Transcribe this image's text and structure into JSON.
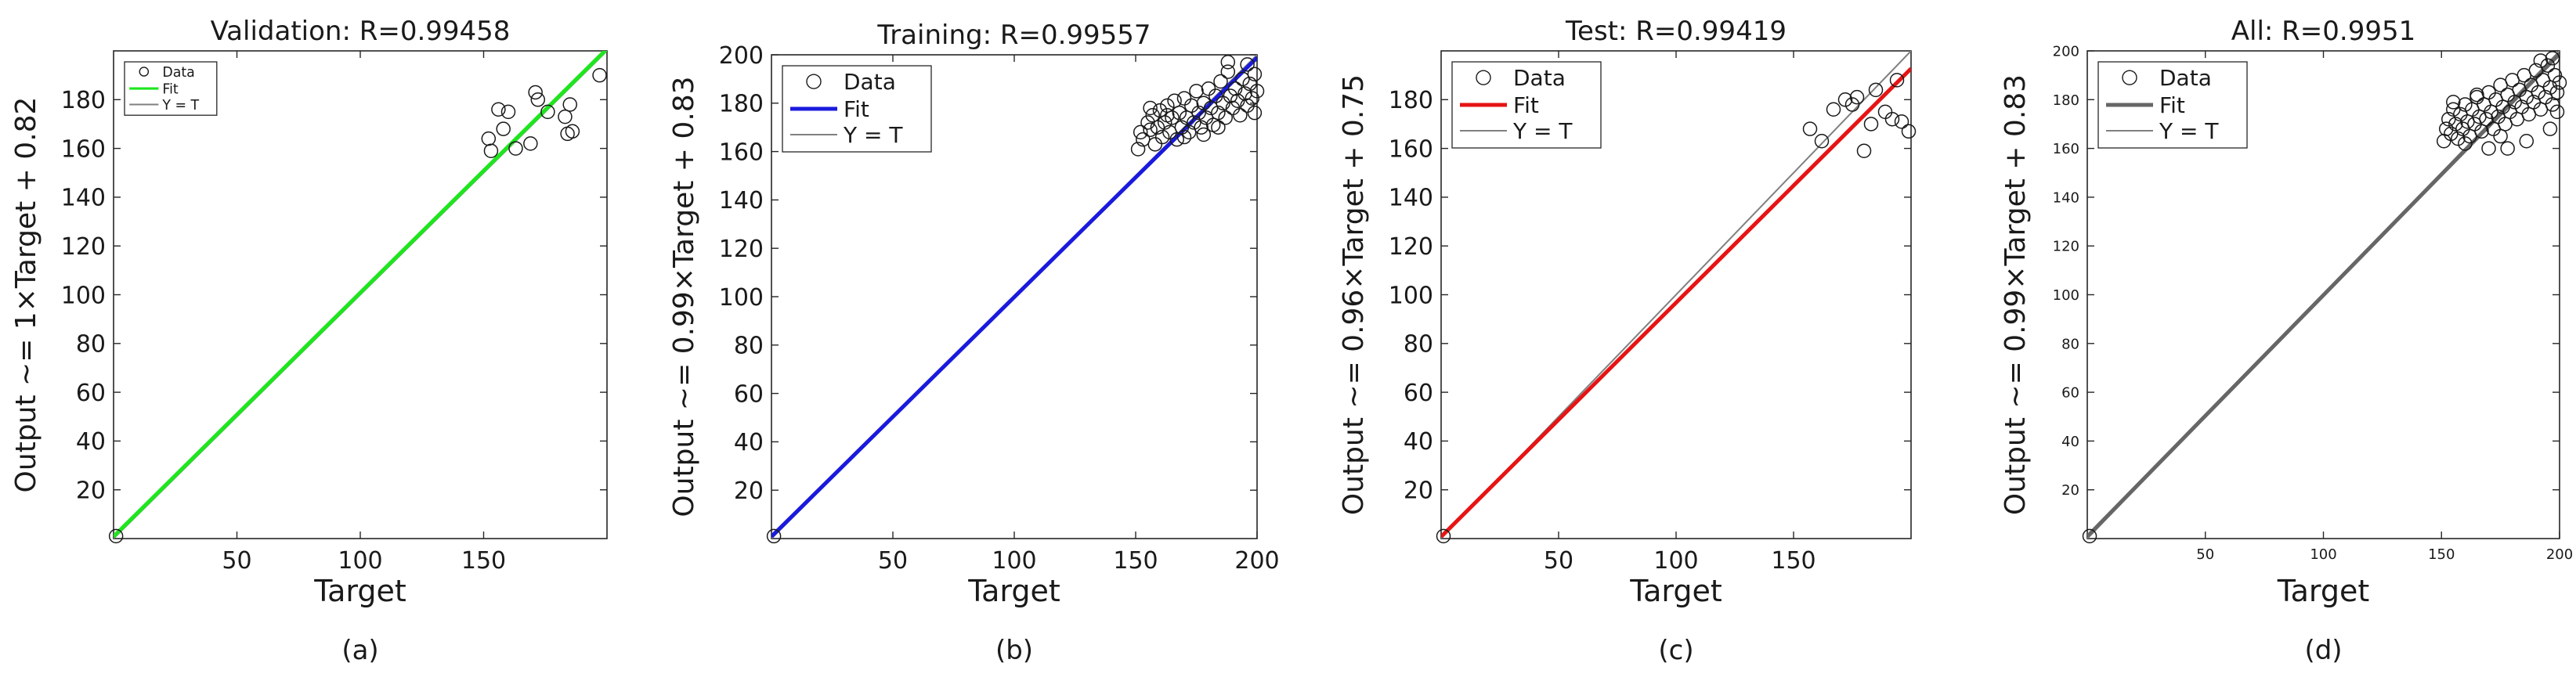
{
  "chart_data": [
    {
      "type": "scatter",
      "panel_label": "(a)",
      "title": "Validation: R=0.99458",
      "xlabel": "Target",
      "ylabel": "Output ~= 1×Target + 0.82",
      "xlim": [
        0,
        200
      ],
      "ylim": [
        0,
        200
      ],
      "xticks": [
        50,
        100,
        150
      ],
      "yticks": [
        20,
        40,
        60,
        80,
        100,
        120,
        140,
        160,
        180
      ],
      "legend": [
        "Data",
        "Fit",
        "Y = T"
      ],
      "legend_position": "top-left",
      "fit": {
        "slope": 1,
        "intercept": 0.82,
        "color": "#1ee61e"
      },
      "identity_color": "#808080",
      "points": [
        [
          1,
          1
        ],
        [
          152,
          164
        ],
        [
          153,
          159
        ],
        [
          156,
          176
        ],
        [
          158,
          168
        ],
        [
          160,
          175
        ],
        [
          163,
          160
        ],
        [
          169,
          162
        ],
        [
          171,
          183
        ],
        [
          172,
          180
        ],
        [
          176,
          175
        ],
        [
          183,
          173
        ],
        [
          184,
          166
        ],
        [
          185,
          178
        ],
        [
          186,
          167
        ],
        [
          197,
          190
        ]
      ]
    },
    {
      "type": "scatter",
      "panel_label": "(b)",
      "title": "Training: R=0.99557",
      "xlabel": "Target",
      "ylabel": "Output ~= 0.99×Target + 0.83",
      "xlim": [
        0,
        200
      ],
      "ylim": [
        0,
        200
      ],
      "xticks": [
        50,
        100,
        150,
        200
      ],
      "yticks": [
        20,
        40,
        60,
        80,
        100,
        120,
        140,
        160,
        180,
        200
      ],
      "legend": [
        "Data",
        "Fit",
        "Y = T"
      ],
      "legend_position": "top-left",
      "fit": {
        "slope": 0.99,
        "intercept": 0.83,
        "color": "#1a1add"
      },
      "identity_color": "#808080",
      "points": [
        [
          1,
          1
        ],
        [
          151,
          161
        ],
        [
          152,
          168
        ],
        [
          153,
          165
        ],
        [
          155,
          172
        ],
        [
          156,
          169
        ],
        [
          157,
          175
        ],
        [
          158,
          163
        ],
        [
          159,
          170
        ],
        [
          160,
          177
        ],
        [
          161,
          166
        ],
        [
          162,
          172
        ],
        [
          163,
          179
        ],
        [
          164,
          168
        ],
        [
          165,
          174
        ],
        [
          166,
          181
        ],
        [
          167,
          165
        ],
        [
          168,
          176
        ],
        [
          169,
          170
        ],
        [
          170,
          182
        ],
        [
          171,
          174
        ],
        [
          172,
          168
        ],
        [
          173,
          179
        ],
        [
          174,
          172
        ],
        [
          175,
          185
        ],
        [
          176,
          176
        ],
        [
          177,
          170
        ],
        [
          178,
          180
        ],
        [
          179,
          174
        ],
        [
          180,
          186
        ],
        [
          181,
          178
        ],
        [
          182,
          171
        ],
        [
          183,
          183
        ],
        [
          184,
          176
        ],
        [
          185,
          189
        ],
        [
          186,
          180
        ],
        [
          187,
          174
        ],
        [
          188,
          193
        ],
        [
          189,
          183
        ],
        [
          190,
          178
        ],
        [
          191,
          186
        ],
        [
          192,
          181
        ],
        [
          193,
          175
        ],
        [
          194,
          190
        ],
        [
          195,
          184
        ],
        [
          196,
          179
        ],
        [
          197,
          188
        ],
        [
          198,
          182
        ],
        [
          199,
          176
        ],
        [
          200,
          185
        ],
        [
          199,
          192
        ],
        [
          196,
          196
        ],
        [
          188,
          197
        ],
        [
          178,
          167
        ],
        [
          163,
          175
        ],
        [
          156,
          178
        ],
        [
          170,
          166
        ],
        [
          184,
          170
        ]
      ]
    },
    {
      "type": "scatter",
      "panel_label": "(c)",
      "title": "Test: R=0.99419",
      "xlabel": "Target",
      "ylabel": "Output ~= 0.96×Target + 0.75",
      "xlim": [
        0,
        200
      ],
      "ylim": [
        0,
        200
      ],
      "xticks": [
        50,
        100,
        150
      ],
      "yticks": [
        20,
        40,
        60,
        80,
        100,
        120,
        140,
        160,
        180
      ],
      "legend": [
        "Data",
        "Fit",
        "Y = T"
      ],
      "legend_position": "top-left",
      "fit": {
        "slope": 0.96,
        "intercept": 0.75,
        "color": "#e61414"
      },
      "identity_color": "#808080",
      "points": [
        [
          1,
          1
        ],
        [
          157,
          168
        ],
        [
          162,
          163
        ],
        [
          167,
          176
        ],
        [
          172,
          180
        ],
        [
          175,
          178
        ],
        [
          177,
          181
        ],
        [
          180,
          159
        ],
        [
          183,
          170
        ],
        [
          185,
          184
        ],
        [
          189,
          175
        ],
        [
          192,
          172
        ],
        [
          194,
          188
        ],
        [
          196,
          171
        ],
        [
          199,
          167
        ]
      ]
    },
    {
      "type": "scatter",
      "panel_label": "(d)",
      "title": "All: R=0.9951",
      "xlabel": "Target",
      "ylabel": "Output ~= 0.99×Target + 0.83",
      "xlim": [
        0,
        200
      ],
      "ylim": [
        0,
        200
      ],
      "xticks": [
        50,
        100,
        150,
        200
      ],
      "yticks": [
        20,
        40,
        60,
        80,
        100,
        120,
        140,
        160,
        180,
        200
      ],
      "legend": [
        "Data",
        "Fit",
        "Y = T"
      ],
      "legend_position": "top-left",
      "fit": {
        "slope": 0.99,
        "intercept": 0.83,
        "color": "#666666"
      },
      "identity_color": "#808080",
      "points": [
        [
          1,
          1
        ],
        [
          151,
          163
        ],
        [
          152,
          168
        ],
        [
          153,
          172
        ],
        [
          154,
          166
        ],
        [
          155,
          176
        ],
        [
          156,
          170
        ],
        [
          157,
          164
        ],
        [
          158,
          174
        ],
        [
          159,
          168
        ],
        [
          160,
          178
        ],
        [
          161,
          171
        ],
        [
          162,
          165
        ],
        [
          163,
          176
        ],
        [
          164,
          170
        ],
        [
          165,
          181
        ],
        [
          166,
          173
        ],
        [
          167,
          167
        ],
        [
          168,
          178
        ],
        [
          169,
          172
        ],
        [
          170,
          183
        ],
        [
          171,
          175
        ],
        [
          172,
          168
        ],
        [
          173,
          180
        ],
        [
          174,
          173
        ],
        [
          175,
          186
        ],
        [
          176,
          177
        ],
        [
          177,
          170
        ],
        [
          178,
          182
        ],
        [
          179,
          175
        ],
        [
          180,
          188
        ],
        [
          181,
          179
        ],
        [
          182,
          172
        ],
        [
          183,
          184
        ],
        [
          184,
          177
        ],
        [
          185,
          190
        ],
        [
          186,
          181
        ],
        [
          187,
          174
        ],
        [
          188,
          186
        ],
        [
          189,
          179
        ],
        [
          190,
          192
        ],
        [
          191,
          183
        ],
        [
          192,
          176
        ],
        [
          193,
          188
        ],
        [
          194,
          181
        ],
        [
          195,
          194
        ],
        [
          196,
          185
        ],
        [
          197,
          178
        ],
        [
          198,
          190
        ],
        [
          199,
          183
        ],
        [
          200,
          187
        ],
        [
          199,
          175
        ],
        [
          197,
          197
        ],
        [
          192,
          196
        ],
        [
          178,
          160
        ],
        [
          186,
          163
        ],
        [
          170,
          160
        ],
        [
          160,
          162
        ],
        [
          196,
          168
        ],
        [
          175,
          165
        ],
        [
          165,
          182
        ],
        [
          155,
          179
        ]
      ]
    }
  ]
}
